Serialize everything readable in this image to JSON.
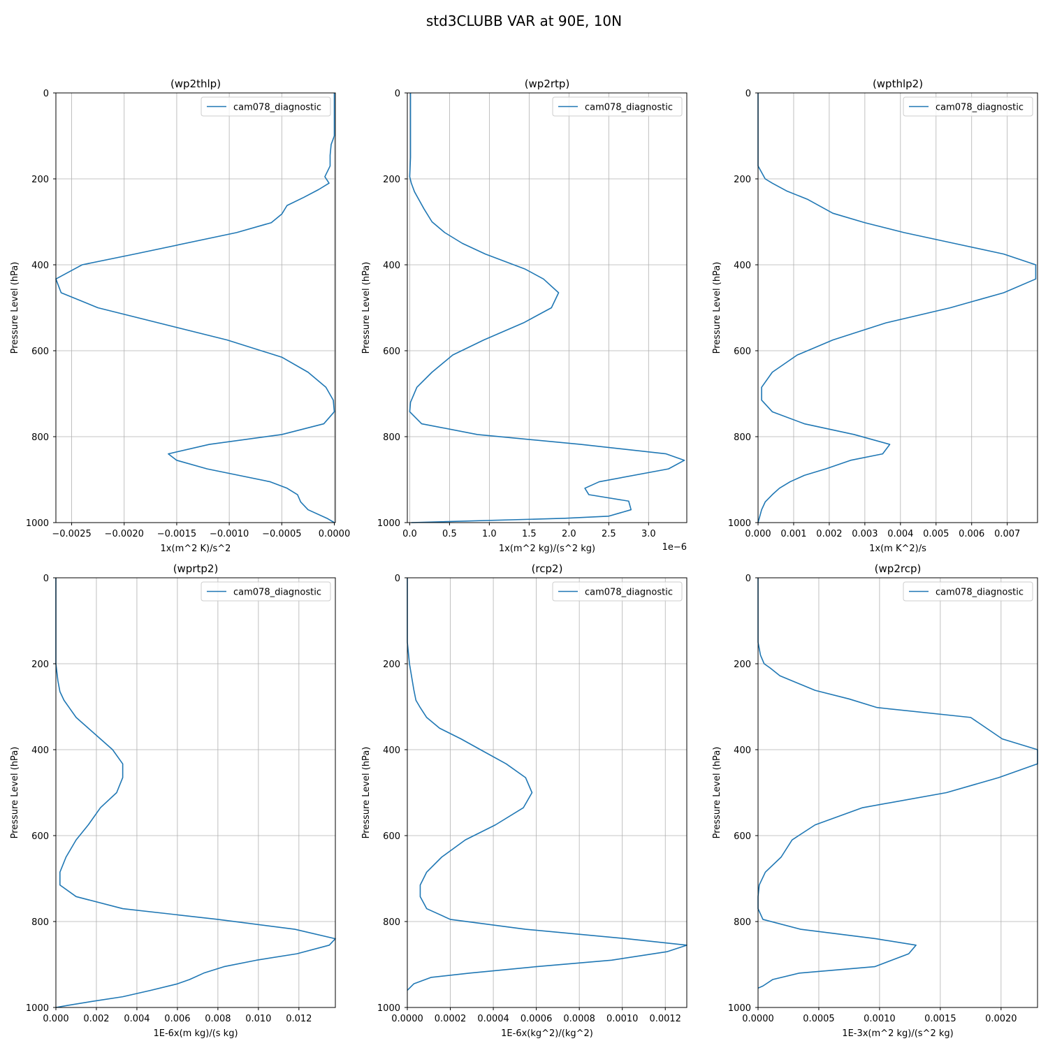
{
  "suptitle": "std3CLUBB VAR at 90E, 10N",
  "chart_data": [
    {
      "type": "line",
      "title": "(wp2thlp)",
      "xlabel": "1x(m^2 K)/s^2",
      "ylabel": "Pressure Level (hPa)",
      "xlim": [
        -0.00265,
        1e-05
      ],
      "ylim": [
        1000,
        0
      ],
      "xticks": [
        -0.0025,
        -0.002,
        -0.0015,
        -0.001,
        -0.0005,
        0.0
      ],
      "xtick_labels": [
        "−0.0025",
        "−0.0020",
        "−0.0015",
        "−0.0010",
        "−0.0005",
        "0.0000"
      ],
      "yticks": [
        0,
        200,
        400,
        600,
        800,
        1000
      ],
      "offset_text": "",
      "legend": "top-right",
      "grid": true,
      "series": [
        {
          "name": "cam078_diagnostic",
          "color": "#1f77b4",
          "x": [
            0,
            0,
            0,
            -3e-05,
            -4e-05,
            -4e-05,
            -9e-05,
            -5e-05,
            -0.00015,
            -0.00029,
            -0.00045,
            -0.0005,
            -0.0006,
            -0.00093,
            -0.0019,
            -0.0024,
            -0.00265,
            -0.0026,
            -0.00225,
            -0.00102,
            -0.0005,
            -0.00025,
            -8e-05,
            -1e-05,
            0.0,
            -0.0001,
            -0.0005,
            -0.00119,
            -0.00158,
            -0.0015,
            -0.00121,
            -0.00061,
            -0.00045,
            -0.00035,
            -0.00032,
            -0.00025,
            -7e-05,
            0.0
          ],
          "y": [
            0,
            50,
            100,
            120,
            145,
            170,
            195,
            210,
            225,
            243,
            262,
            282,
            302,
            325,
            375,
            400,
            433,
            465,
            500,
            575,
            615,
            650,
            685,
            715,
            742,
            770,
            795,
            818,
            840,
            855,
            875,
            905,
            920,
            935,
            952,
            970,
            990,
            1000
          ]
        }
      ]
    },
    {
      "type": "line",
      "title": "(wp2rtp)",
      "xlabel": "1x(m^2 kg)/(s^2 kg)",
      "ylabel": "Pressure Level (hPa)",
      "xlim": [
        -3e-08,
        3.48e-06
      ],
      "ylim": [
        1000,
        0
      ],
      "xticks": [
        0.0,
        5e-07,
        1e-06,
        1.5e-06,
        2e-06,
        2.5e-06,
        3e-06
      ],
      "xtick_labels": [
        "0.0",
        "0.5",
        "1.0",
        "1.5",
        "2.0",
        "2.5",
        "3.0"
      ],
      "yticks": [
        0,
        200,
        400,
        600,
        800,
        1000
      ],
      "offset_text": "1e−6",
      "legend": "top-right",
      "grid": true,
      "series": [
        {
          "name": "cam078_diagnostic",
          "color": "#1f77b4",
          "x": [
            1e-08,
            1e-08,
            1e-08,
            1e-08,
            0.0,
            2e-08,
            6e-08,
            1.2e-07,
            1.8e-07,
            2.8e-07,
            4.4e-07,
            6.6e-07,
            9.5e-07,
            1.45e-06,
            1.68e-06,
            1.87e-06,
            1.78e-06,
            1.43e-06,
            9.3e-07,
            5.4e-07,
            2.8e-07,
            9e-08,
            1e-08,
            0.0,
            1.5e-07,
            8.5e-07,
            2.15e-06,
            3.22e-06,
            3.45e-06,
            3.25e-06,
            2.38e-06,
            2.2e-06,
            2.25e-06,
            2.75e-06,
            2.78e-06,
            2.5e-06,
            1.95e-06,
            2e-08
          ],
          "y": [
            0,
            50,
            100,
            150,
            195,
            210,
            230,
            250,
            270,
            300,
            325,
            350,
            375,
            410,
            433,
            465,
            500,
            535,
            575,
            610,
            650,
            685,
            720,
            742,
            770,
            795,
            818,
            840,
            855,
            875,
            905,
            920,
            935,
            950,
            970,
            985,
            990,
            1000
          ]
        }
      ]
    },
    {
      "type": "line",
      "title": "(wpthlp2)",
      "xlabel": "1x(m K^2)/s",
      "ylabel": "Pressure Level (hPa)",
      "xlim": [
        0.0,
        0.00785
      ],
      "ylim": [
        1000,
        0
      ],
      "xticks": [
        0.0,
        0.001,
        0.002,
        0.003,
        0.004,
        0.005,
        0.006,
        0.007
      ],
      "xtick_labels": [
        "0.000",
        "0.001",
        "0.002",
        "0.003",
        "0.004",
        "0.005",
        "0.006",
        "0.007"
      ],
      "yticks": [
        0,
        200,
        400,
        600,
        800,
        1000
      ],
      "offset_text": "",
      "legend": "top-right",
      "grid": true,
      "series": [
        {
          "name": "cam078_diagnostic",
          "color": "#1f77b4",
          "x": [
            0.0,
            0.0,
            0.0,
            0.0,
            0.0001,
            0.0002,
            0.0004,
            0.0008,
            0.0014,
            0.0021,
            0.003,
            0.0041,
            0.0055,
            0.0069,
            0.0078,
            0.0078,
            0.0069,
            0.0054,
            0.0036,
            0.0021,
            0.0011,
            0.0004,
            0.0001,
            0.0001,
            0.0004,
            0.0013,
            0.0027,
            0.0037,
            0.0035,
            0.0026,
            0.0019,
            0.0013,
            0.0009,
            0.0006,
            0.0004,
            0.0002,
            0.0001,
            0.0
          ],
          "y": [
            0,
            90,
            130,
            170,
            185,
            200,
            210,
            228,
            248,
            280,
            302,
            325,
            350,
            375,
            400,
            433,
            465,
            500,
            535,
            575,
            610,
            650,
            685,
            715,
            742,
            770,
            795,
            818,
            840,
            855,
            875,
            890,
            905,
            920,
            935,
            952,
            970,
            1000
          ]
        }
      ]
    },
    {
      "type": "line",
      "title": "(wprtp2)",
      "xlabel": "1E-6x(m kg)/(s kg)",
      "ylabel": "Pressure Level (hPa)",
      "xlim": [
        0.0,
        0.0138
      ],
      "ylim": [
        1000,
        0
      ],
      "xticks": [
        0.0,
        0.002,
        0.004,
        0.006,
        0.008,
        0.01,
        0.012
      ],
      "xtick_labels": [
        "0.000",
        "0.002",
        "0.004",
        "0.006",
        "0.008",
        "0.010",
        "0.012"
      ],
      "yticks": [
        0,
        200,
        400,
        600,
        800,
        1000
      ],
      "offset_text": "",
      "legend": "top-right",
      "grid": true,
      "series": [
        {
          "name": "cam078_diagnostic",
          "color": "#1f77b4",
          "x": [
            0.0,
            0.0,
            0.0001,
            0.0002,
            0.0004,
            0.0007,
            0.001,
            0.0016,
            0.0022,
            0.0028,
            0.0033,
            0.0033,
            0.003,
            0.0022,
            0.0016,
            0.001,
            0.0005,
            0.0002,
            0.0002,
            0.001,
            0.0033,
            0.008,
            0.0118,
            0.0138,
            0.0135,
            0.0119,
            0.0099,
            0.0083,
            0.0073,
            0.0066,
            0.006,
            0.0047,
            0.0033,
            0.0019,
            0.0006,
            0.0
          ],
          "y": [
            0,
            200,
            240,
            265,
            285,
            305,
            325,
            350,
            375,
            400,
            433,
            465,
            500,
            535,
            575,
            610,
            650,
            685,
            715,
            742,
            770,
            795,
            818,
            840,
            855,
            875,
            890,
            905,
            920,
            935,
            945,
            960,
            975,
            985,
            995,
            1000
          ]
        }
      ]
    },
    {
      "type": "line",
      "title": "(rcp2)",
      "xlabel": "1E-6x(kg^2)/(kg^2)",
      "ylabel": "Pressure Level (hPa)",
      "xlim": [
        0.0,
        0.0013
      ],
      "ylim": [
        1000,
        0
      ],
      "xticks": [
        0.0,
        0.0002,
        0.0004,
        0.0006,
        0.0008,
        0.001,
        0.0012
      ],
      "xtick_labels": [
        "0.0000",
        "0.0002",
        "0.0004",
        "0.0006",
        "0.0008",
        "0.0010",
        "0.0012"
      ],
      "yticks": [
        0,
        200,
        400,
        600,
        800,
        1000
      ],
      "offset_text": "",
      "legend": "top-right",
      "grid": true,
      "series": [
        {
          "name": "cam078_diagnostic",
          "color": "#1f77b4",
          "x": [
            0.0,
            0.0,
            1e-05,
            2e-05,
            3e-05,
            4e-05,
            6e-05,
            9e-05,
            0.00015,
            0.00025,
            0.00034,
            0.00046,
            0.00055,
            0.00058,
            0.00054,
            0.00041,
            0.00027,
            0.00016,
            9e-05,
            6e-05,
            6e-05,
            9e-05,
            0.0002,
            0.00055,
            0.00102,
            0.0013,
            0.00121,
            0.00095,
            0.0006,
            0.00029,
            0.00011,
            3e-05,
            0.0
          ],
          "y": [
            0,
            150,
            200,
            230,
            260,
            285,
            302,
            325,
            350,
            375,
            400,
            433,
            465,
            500,
            535,
            575,
            610,
            650,
            685,
            715,
            742,
            770,
            795,
            818,
            840,
            855,
            870,
            890,
            905,
            920,
            930,
            945,
            960
          ]
        }
      ]
    },
    {
      "type": "line",
      "title": "(wp2rcp)",
      "xlabel": "1E-3x(m^2 kg)/(s^2 kg)",
      "ylabel": "Pressure Level (hPa)",
      "xlim": [
        0.0,
        0.0023
      ],
      "ylim": [
        1000,
        0
      ],
      "xticks": [
        0.0,
        0.0005,
        0.001,
        0.0015,
        0.002
      ],
      "xtick_labels": [
        "0.0000",
        "0.0005",
        "0.0010",
        "0.0015",
        "0.0020"
      ],
      "yticks": [
        0,
        200,
        400,
        600,
        800,
        1000
      ],
      "offset_text": "",
      "legend": "top-right",
      "grid": true,
      "series": [
        {
          "name": "cam078_diagnostic",
          "color": "#1f77b4",
          "x": [
            0.0,
            0.0,
            2e-05,
            5e-05,
            0.0001,
            0.00018,
            0.00035,
            0.00047,
            0.00075,
            0.00098,
            0.00175,
            0.00201,
            0.0023,
            0.0023,
            0.00198,
            0.00155,
            0.00086,
            0.00047,
            0.00028,
            0.00019,
            6e-05,
            1e-05,
            0.0,
            0.0,
            4e-05,
            0.00035,
            0.00097,
            0.0013,
            0.00124,
            0.00096,
            0.00034,
            0.00012,
            4e-05,
            0.0
          ],
          "y": [
            0,
            150,
            180,
            200,
            210,
            228,
            248,
            262,
            282,
            302,
            325,
            375,
            400,
            433,
            465,
            500,
            535,
            575,
            610,
            650,
            685,
            715,
            742,
            770,
            795,
            818,
            840,
            855,
            875,
            905,
            920,
            935,
            950,
            955
          ]
        }
      ]
    }
  ]
}
